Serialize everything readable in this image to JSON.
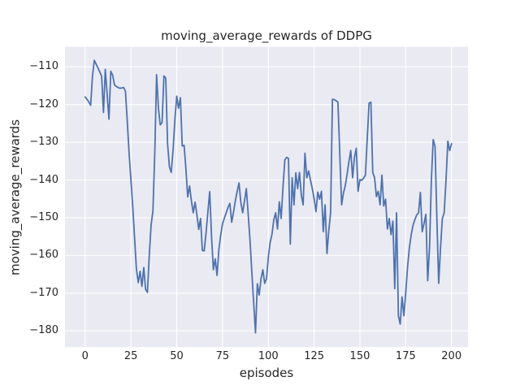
{
  "figure": {
    "background": "#ffffff"
  },
  "chart_data": {
    "type": "line",
    "title": "moving_average_rewards of DDPG",
    "xlabel": "episodes",
    "ylabel": "moving_average_rewards",
    "legend": null,
    "grid": true,
    "xlim": [
      -11,
      209
    ],
    "ylim": [
      -184.3,
      -104.7
    ],
    "x_ticks": [
      0,
      25,
      50,
      75,
      100,
      125,
      150,
      175,
      200
    ],
    "x_tick_labels": [
      "0",
      "25",
      "50",
      "75",
      "100",
      "125",
      "150",
      "175",
      "200"
    ],
    "y_ticks": [
      -110,
      -120,
      -130,
      -140,
      -150,
      -160,
      -170,
      -180
    ],
    "y_tick_labels": [
      "−110",
      "−120",
      "−130",
      "−140",
      "−150",
      "−160",
      "−170",
      "−180"
    ],
    "style": {
      "axes_background": "#eaeaf2",
      "grid_color": "#ffffff",
      "line_color": "#4c72b0",
      "text_color": "#262626",
      "line_width": 1.8
    },
    "series": [
      {
        "name": "moving_average_rewards",
        "x_start": 0,
        "x_step": 1,
        "values": [
          -118.0,
          -118.6,
          -119.3,
          -120.2,
          -112.5,
          -108.3,
          -109.3,
          -110.3,
          -111.4,
          -112.5,
          -122.1,
          -110.7,
          -117.3,
          -123.9,
          -111.2,
          -112.2,
          -114.8,
          -115.2,
          -115.5,
          -115.7,
          -115.6,
          -115.5,
          -116.5,
          -124.5,
          -133.0,
          -140.0,
          -147.2,
          -155.5,
          -163.7,
          -167.2,
          -164.2,
          -168.2,
          -163.2,
          -169.0,
          -169.8,
          -160.0,
          -152.0,
          -148.2,
          -133.0,
          -112.1,
          -121.0,
          -125.4,
          -124.8,
          -112.4,
          -113.0,
          -130.4,
          -136.5,
          -138.0,
          -132.0,
          -124.0,
          -117.8,
          -121.0,
          -118.2,
          -131.0,
          -130.8,
          -137.0,
          -144.5,
          -141.6,
          -145.5,
          -148.7,
          -145.9,
          -149.2,
          -153.1,
          -150.2,
          -158.7,
          -158.8,
          -154.0,
          -148.5,
          -143.1,
          -155.0,
          -163.8,
          -160.9,
          -165.3,
          -158.5,
          -154.6,
          -151.6,
          -150.1,
          -148.7,
          -147.3,
          -146.2,
          -151.2,
          -148.5,
          -145.5,
          -143.0,
          -140.8,
          -146.0,
          -148.7,
          -145.5,
          -142.3,
          -149.0,
          -156.0,
          -164.5,
          -172.5,
          -180.5,
          -167.5,
          -170.5,
          -166.2,
          -163.8,
          -167.4,
          -166.2,
          -160.5,
          -156.5,
          -154.4,
          -150.5,
          -148.7,
          -153.0,
          -145.8,
          -150.2,
          -142.0,
          -134.7,
          -134.0,
          -134.3,
          -157.0,
          -139.4,
          -146.6,
          -138.1,
          -142.3,
          -138.0,
          -144.0,
          -146.6,
          -132.9,
          -139.4,
          -137.6,
          -140.0,
          -142.3,
          -145.0,
          -148.4,
          -143.2,
          -145.1,
          -143.0,
          -153.7,
          -146.6,
          -159.5,
          -153.5,
          -148.7,
          -118.6,
          -118.7,
          -119.0,
          -119.4,
          -133.0,
          -146.6,
          -143.5,
          -141.5,
          -138.5,
          -135.1,
          -132.2,
          -139.4,
          -134.0,
          -131.6,
          -143.0,
          -139.9,
          -140.1,
          -139.5,
          -138.7,
          -129.0,
          -119.6,
          -119.4,
          -138.0,
          -139.4,
          -144.4,
          -143.0,
          -146.6,
          -138.7,
          -146.9,
          -145.1,
          -153.0,
          -150.2,
          -154.5,
          -150.9,
          -168.8,
          -148.7,
          -176.0,
          -178.2,
          -171.0,
          -176.0,
          -170.0,
          -163.1,
          -158.0,
          -154.5,
          -152.0,
          -150.5,
          -149.3,
          -148.7,
          -143.3,
          -153.7,
          -151.5,
          -149.1,
          -166.7,
          -158.0,
          -140.0,
          -129.3,
          -131.0,
          -150.0,
          -167.4,
          -158.0,
          -150.2,
          -148.7,
          -140.0,
          -129.7,
          -132.2,
          -130.4
        ]
      }
    ]
  }
}
